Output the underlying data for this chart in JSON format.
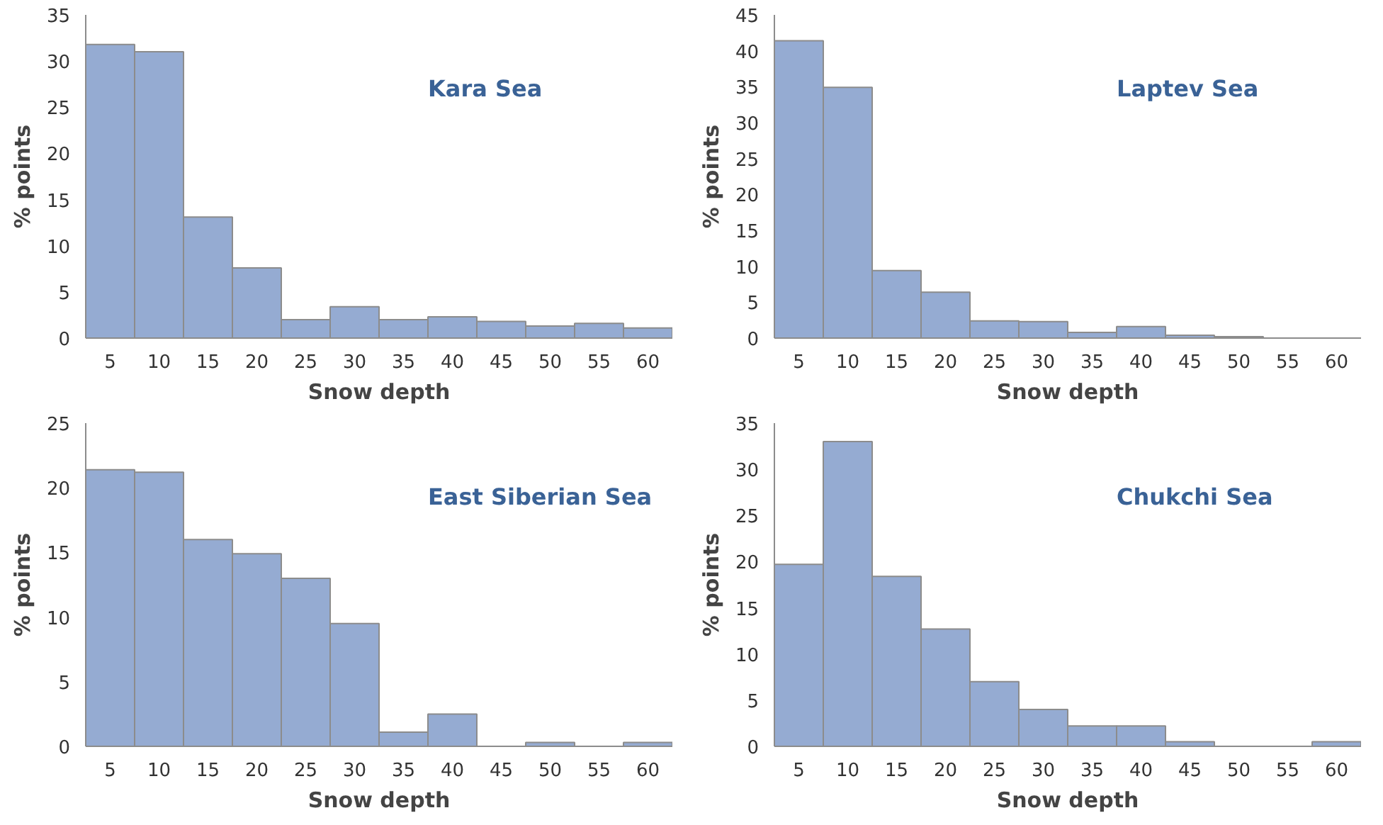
{
  "chart_data": [
    {
      "type": "bar",
      "title": "Kara Sea",
      "xlabel": "Snow depth",
      "ylabel": "% points",
      "categories": [
        "5",
        "10",
        "15",
        "20",
        "25",
        "30",
        "35",
        "40",
        "45",
        "50",
        "55",
        "60"
      ],
      "color": "#95abd2",
      "values": [
        31.8,
        31.0,
        13.1,
        7.6,
        2.0,
        3.4,
        2.0,
        2.3,
        1.8,
        1.3,
        1.6,
        1.1
      ],
      "ylim": [
        0,
        35
      ],
      "yticks": [
        0,
        5,
        10,
        15,
        20,
        25,
        30,
        35
      ],
      "grid": false
    },
    {
      "type": "bar",
      "title": "Laptev Sea",
      "xlabel": "Snow depth",
      "ylabel": "% points",
      "categories": [
        "5",
        "10",
        "15",
        "20",
        "25",
        "30",
        "35",
        "40",
        "45",
        "50",
        "55",
        "60"
      ],
      "color": "#95abd2",
      "values": [
        41.4,
        34.9,
        9.4,
        6.4,
        2.4,
        2.3,
        0.8,
        1.6,
        0.4,
        0.2,
        0,
        0
      ],
      "ylim": [
        0,
        45
      ],
      "yticks": [
        0,
        5,
        10,
        15,
        20,
        25,
        30,
        35,
        40,
        45
      ],
      "grid": false
    },
    {
      "type": "bar",
      "title": "East Siberian Sea",
      "xlabel": "Snow depth",
      "ylabel": "% points",
      "categories": [
        "5",
        "10",
        "15",
        "20",
        "25",
        "30",
        "35",
        "40",
        "45",
        "50",
        "55",
        "60"
      ],
      "color": "#95abd2",
      "values": [
        21.4,
        21.2,
        16.0,
        14.9,
        13.0,
        9.5,
        1.1,
        2.5,
        0,
        0.3,
        0,
        0.3
      ],
      "ylim": [
        0,
        25
      ],
      "yticks": [
        0,
        5,
        10,
        15,
        20,
        25
      ],
      "grid": false
    },
    {
      "type": "bar",
      "title": "Chukchi Sea",
      "xlabel": "Snow depth",
      "ylabel": "% points",
      "categories": [
        "5",
        "10",
        "15",
        "20",
        "25",
        "30",
        "35",
        "40",
        "45",
        "50",
        "55",
        "60"
      ],
      "color": "#95abd2",
      "values": [
        19.7,
        33.0,
        18.4,
        12.7,
        7.0,
        4.0,
        2.2,
        2.2,
        0.5,
        0,
        0,
        0.5
      ],
      "ylim": [
        0,
        35
      ],
      "yticks": [
        0,
        5,
        10,
        15,
        20,
        25,
        30,
        35
      ],
      "grid": false
    }
  ]
}
